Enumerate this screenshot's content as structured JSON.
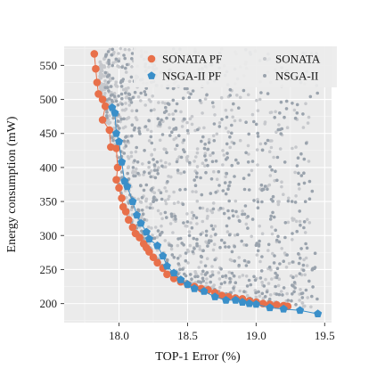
{
  "chart_data": {
    "type": "scatter",
    "title": "",
    "xlabel": "TOP-1 Error (%)",
    "ylabel": "Energy consumption (mW)",
    "xlim": [
      17.6,
      19.55
    ],
    "ylim": [
      172,
      578
    ],
    "x_ticks": [
      18.0,
      18.5,
      19.0,
      19.5
    ],
    "x_tick_labels": [
      "18.0",
      "18.5",
      "19.0",
      "19.5"
    ],
    "y_ticks": [
      200,
      250,
      300,
      350,
      400,
      450,
      500,
      550
    ],
    "y_tick_labels": [
      "200",
      "250",
      "300",
      "350",
      "400",
      "450",
      "500",
      "550"
    ],
    "grid": true,
    "background": "#ebebeb",
    "legend_position": "top-right",
    "legend": [
      "SONATA PF",
      "NSGA-II PF",
      "SONATA",
      "NSGA-II"
    ],
    "series": [
      {
        "name": "SONATA PF",
        "marker": "circle",
        "color": "#e8704a",
        "line": true,
        "points": [
          [
            17.82,
            567
          ],
          [
            17.83,
            545
          ],
          [
            17.84,
            525
          ],
          [
            17.85,
            508
          ],
          [
            17.88,
            500
          ],
          [
            17.9,
            490
          ],
          [
            17.88,
            470
          ],
          [
            17.93,
            455
          ],
          [
            17.94,
            430
          ],
          [
            17.98,
            428
          ],
          [
            17.99,
            400
          ],
          [
            17.98,
            382
          ],
          [
            18.0,
            370
          ],
          [
            18.02,
            355
          ],
          [
            18.03,
            342
          ],
          [
            18.05,
            335
          ],
          [
            18.07,
            323
          ],
          [
            18.1,
            312
          ],
          [
            18.12,
            303
          ],
          [
            18.15,
            297
          ],
          [
            18.18,
            288
          ],
          [
            18.2,
            282
          ],
          [
            18.22,
            276
          ],
          [
            18.25,
            268
          ],
          [
            18.28,
            260
          ],
          [
            18.32,
            252
          ],
          [
            18.35,
            243
          ],
          [
            18.4,
            237
          ],
          [
            18.45,
            232
          ],
          [
            18.5,
            228
          ],
          [
            18.55,
            225
          ],
          [
            18.6,
            222
          ],
          [
            18.65,
            220
          ],
          [
            18.7,
            216
          ],
          [
            18.75,
            212
          ],
          [
            18.8,
            210
          ],
          [
            18.85,
            208
          ],
          [
            18.9,
            207
          ],
          [
            18.95,
            204
          ],
          [
            19.0,
            202
          ],
          [
            19.05,
            200
          ],
          [
            19.1,
            199
          ],
          [
            19.15,
            198
          ],
          [
            19.2,
            197
          ],
          [
            19.23,
            196
          ]
        ]
      },
      {
        "name": "NSGA-II PF",
        "marker": "pentagon",
        "color": "#3a8fc9",
        "line": true,
        "points": [
          [
            17.95,
            488
          ],
          [
            17.97,
            480
          ],
          [
            17.98,
            450
          ],
          [
            18.0,
            438
          ],
          [
            18.02,
            408
          ],
          [
            18.04,
            380
          ],
          [
            18.06,
            372
          ],
          [
            18.1,
            350
          ],
          [
            18.13,
            330
          ],
          [
            18.16,
            318
          ],
          [
            18.2,
            305
          ],
          [
            18.22,
            295
          ],
          [
            18.28,
            285
          ],
          [
            18.32,
            270
          ],
          [
            18.35,
            255
          ],
          [
            18.4,
            245
          ],
          [
            18.45,
            235
          ],
          [
            18.5,
            228
          ],
          [
            18.55,
            222
          ],
          [
            18.62,
            218
          ],
          [
            18.7,
            210
          ],
          [
            18.78,
            205
          ],
          [
            18.85,
            205
          ],
          [
            18.9,
            202
          ],
          [
            18.95,
            200
          ],
          [
            19.0,
            199
          ],
          [
            19.1,
            194
          ],
          [
            19.2,
            192
          ],
          [
            19.32,
            190
          ],
          [
            19.45,
            185
          ]
        ]
      },
      {
        "name": "SONATA",
        "marker": "dot",
        "color": "#c6c8cc",
        "line": false,
        "points": []
      },
      {
        "name": "NSGA-II",
        "marker": "dot",
        "color": "#9aa3ad",
        "line": false,
        "points": []
      }
    ]
  }
}
